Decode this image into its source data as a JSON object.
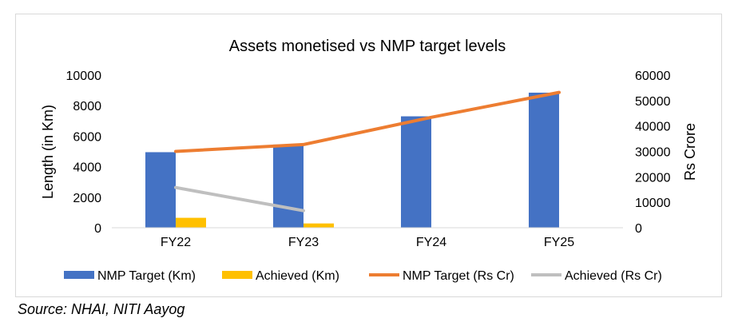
{
  "chart_data": {
    "type": "bar",
    "title": "Assets monetised vs NMP target levels",
    "categories": [
      "FY22",
      "FY23",
      "FY24",
      "FY25"
    ],
    "y_left": {
      "label": "Length (in Km)",
      "ylim": [
        0,
        10000
      ],
      "ticks": [
        "0",
        "2000",
        "4000",
        "6000",
        "8000",
        "10000"
      ]
    },
    "y_right": {
      "label": "Rs Crore",
      "ylim": [
        0,
        60000
      ],
      "ticks": [
        "0",
        "10000",
        "20000",
        "30000",
        "40000",
        "50000",
        "60000"
      ]
    },
    "series": [
      {
        "name": "NMP Target (Km)",
        "type": "bar",
        "axis": "left",
        "color": "#4472c4",
        "values": [
          4950,
          5450,
          7300,
          8850
        ]
      },
      {
        "name": "Achieved (Km)",
        "type": "bar",
        "axis": "left",
        "color": "#ffc000",
        "values": [
          650,
          280,
          null,
          null
        ]
      },
      {
        "name": "NMP Target (Rs Cr)",
        "type": "line",
        "axis": "right",
        "color": "#ed7d31",
        "values": [
          30000,
          32700,
          43400,
          53200
        ]
      },
      {
        "name": "Achieved (Rs Cr)",
        "type": "line",
        "axis": "right",
        "color": "#bfbfbf",
        "values": [
          15800,
          6700,
          null,
          null
        ]
      }
    ],
    "grid": false,
    "legend": "bottom"
  },
  "source": "Source: NHAI, NITI Aayog"
}
